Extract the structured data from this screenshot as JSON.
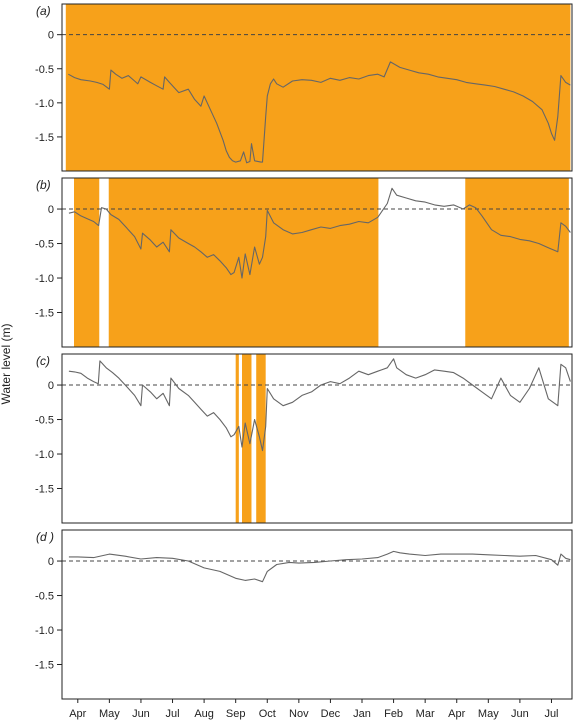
{
  "chart_data": {
    "type": "line",
    "ylabel": "Water level (m)",
    "x_tick_labels": [
      "Apr",
      "May",
      "Jun",
      "Jul",
      "Aug",
      "Sep",
      "Oct",
      "Nov",
      "Dec",
      "Jan",
      "Feb",
      "Mar",
      "Apr",
      "May",
      "Jun",
      "Jul"
    ],
    "x_ticks": [
      1,
      2,
      3,
      4,
      5,
      6,
      7,
      8,
      9,
      10,
      11,
      12,
      13,
      14,
      15,
      16
    ],
    "xlim": [
      0.5,
      16.65
    ],
    "ylim": [
      -2.0,
      0.45
    ],
    "y_ticks": [
      0,
      -0.5,
      -1.0,
      -1.5
    ],
    "y_tick_labels": [
      "0",
      "-0.5",
      "-1.0",
      "-1.5"
    ],
    "reference_line": 0,
    "shade_color": "#F7A11A",
    "line_color": "#666666",
    "panels": [
      {
        "label": "(a)",
        "shaded_periods": [
          [
            0.62,
            16.6
          ]
        ],
        "x": [
          0.7,
          0.9,
          1.1,
          1.4,
          1.6,
          1.8,
          2.0,
          2.05,
          2.2,
          2.4,
          2.6,
          2.8,
          2.9,
          3.0,
          3.3,
          3.5,
          3.7,
          3.75,
          3.9,
          4.2,
          4.5,
          4.7,
          4.9,
          5.0,
          5.2,
          5.4,
          5.6,
          5.7,
          5.8,
          5.9,
          6.0,
          6.15,
          6.25,
          6.35,
          6.45,
          6.5,
          6.6,
          6.8,
          6.85,
          6.95,
          7.0,
          7.1,
          7.2,
          7.3,
          7.5,
          7.8,
          8.1,
          8.4,
          8.7,
          9.0,
          9.3,
          9.6,
          9.9,
          10.2,
          10.5,
          10.7,
          10.9,
          11.2,
          11.5,
          11.8,
          12.1,
          12.4,
          12.7,
          13.0,
          13.3,
          13.6,
          13.9,
          14.2,
          14.5,
          14.8,
          15.1,
          15.4,
          15.7,
          15.9,
          16.0,
          16.1,
          16.2,
          16.3,
          16.45,
          16.6
        ],
        "y": [
          -0.58,
          -0.63,
          -0.66,
          -0.68,
          -0.7,
          -0.73,
          -0.8,
          -0.52,
          -0.58,
          -0.64,
          -0.6,
          -0.68,
          -0.72,
          -0.62,
          -0.7,
          -0.75,
          -0.8,
          -0.62,
          -0.7,
          -0.85,
          -0.8,
          -0.95,
          -1.05,
          -0.9,
          -1.1,
          -1.3,
          -1.55,
          -1.7,
          -1.8,
          -1.85,
          -1.87,
          -1.85,
          -1.72,
          -1.88,
          -1.86,
          -1.6,
          -1.85,
          -1.87,
          -1.87,
          -1.2,
          -0.9,
          -0.72,
          -0.65,
          -0.72,
          -0.77,
          -0.68,
          -0.66,
          -0.67,
          -0.7,
          -0.64,
          -0.67,
          -0.63,
          -0.65,
          -0.6,
          -0.58,
          -0.62,
          -0.4,
          -0.48,
          -0.52,
          -0.56,
          -0.58,
          -0.62,
          -0.64,
          -0.66,
          -0.7,
          -0.72,
          -0.74,
          -0.76,
          -0.8,
          -0.84,
          -0.9,
          -0.98,
          -1.1,
          -1.3,
          -1.45,
          -1.55,
          -1.2,
          -0.6,
          -0.7,
          -0.74
        ]
      },
      {
        "label": "(b)",
        "shaded_periods": [
          [
            0.88,
            1.68
          ],
          [
            1.98,
            10.52
          ],
          [
            13.27,
            16.55
          ]
        ],
        "x": [
          0.72,
          0.9,
          1.1,
          1.3,
          1.5,
          1.66,
          1.75,
          1.9,
          2.05,
          2.3,
          2.5,
          2.8,
          3.0,
          3.05,
          3.3,
          3.5,
          3.7,
          3.9,
          3.95,
          4.2,
          4.5,
          4.7,
          4.9,
          5.1,
          5.3,
          5.5,
          5.7,
          5.85,
          5.95,
          6.1,
          6.2,
          6.3,
          6.45,
          6.6,
          6.75,
          6.85,
          6.95,
          7.0,
          7.2,
          7.5,
          7.8,
          8.1,
          8.4,
          8.7,
          9.0,
          9.3,
          9.6,
          9.9,
          10.2,
          10.5,
          10.8,
          10.95,
          11.1,
          11.4,
          11.7,
          12.0,
          12.3,
          12.6,
          12.9,
          13.2,
          13.4,
          13.6,
          13.8,
          14.1,
          14.4,
          14.7,
          15.0,
          15.3,
          15.6,
          15.9,
          16.2,
          16.3,
          16.45,
          16.6
        ],
        "y": [
          -0.06,
          -0.04,
          -0.1,
          -0.14,
          -0.18,
          -0.24,
          0.02,
          0.0,
          -0.08,
          -0.15,
          -0.25,
          -0.4,
          -0.58,
          -0.35,
          -0.45,
          -0.55,
          -0.48,
          -0.62,
          -0.3,
          -0.42,
          -0.5,
          -0.55,
          -0.62,
          -0.7,
          -0.66,
          -0.75,
          -0.85,
          -0.95,
          -0.92,
          -0.7,
          -1.0,
          -0.65,
          -0.95,
          -0.55,
          -0.8,
          -0.7,
          -0.4,
          -0.02,
          -0.2,
          -0.3,
          -0.36,
          -0.34,
          -0.3,
          -0.26,
          -0.28,
          -0.24,
          -0.22,
          -0.18,
          -0.2,
          -0.12,
          0.08,
          0.3,
          0.2,
          0.16,
          0.12,
          0.1,
          0.06,
          0.04,
          0.06,
          0.0,
          0.06,
          0.02,
          -0.1,
          -0.3,
          -0.38,
          -0.4,
          -0.44,
          -0.46,
          -0.5,
          -0.56,
          -0.62,
          -0.2,
          -0.25,
          -0.34
        ]
      },
      {
        "label": "(c)",
        "shaded_periods": [
          [
            6.0,
            6.1
          ],
          [
            6.2,
            6.5
          ],
          [
            6.65,
            6.95
          ]
        ],
        "x": [
          0.72,
          0.9,
          1.1,
          1.3,
          1.5,
          1.65,
          1.7,
          1.9,
          2.1,
          2.3,
          2.5,
          2.8,
          3.0,
          3.05,
          3.3,
          3.5,
          3.7,
          3.9,
          3.95,
          4.2,
          4.5,
          4.7,
          4.9,
          5.1,
          5.3,
          5.5,
          5.7,
          5.85,
          5.95,
          6.1,
          6.2,
          6.3,
          6.45,
          6.6,
          6.75,
          6.85,
          6.95,
          7.0,
          7.2,
          7.5,
          7.8,
          8.1,
          8.4,
          8.7,
          9.0,
          9.3,
          9.6,
          9.9,
          10.2,
          10.5,
          10.8,
          11.0,
          11.1,
          11.4,
          11.7,
          12.0,
          12.3,
          12.6,
          12.9,
          13.2,
          13.5,
          13.8,
          14.1,
          14.4,
          14.7,
          15.0,
          15.3,
          15.6,
          15.9,
          16.2,
          16.3,
          16.45,
          16.6
        ],
        "y": [
          0.2,
          0.19,
          0.17,
          0.1,
          0.05,
          0.02,
          0.35,
          0.25,
          0.18,
          0.1,
          0.0,
          -0.15,
          -0.3,
          0.0,
          -0.1,
          -0.2,
          -0.12,
          -0.3,
          0.1,
          -0.05,
          -0.15,
          -0.25,
          -0.35,
          -0.45,
          -0.4,
          -0.5,
          -0.62,
          -0.75,
          -0.72,
          -0.6,
          -0.9,
          -0.55,
          -0.85,
          -0.5,
          -0.75,
          -0.95,
          -0.6,
          -0.05,
          -0.2,
          -0.3,
          -0.25,
          -0.15,
          -0.1,
          0.0,
          0.05,
          0.02,
          0.1,
          0.2,
          0.15,
          0.2,
          0.25,
          0.38,
          0.25,
          0.15,
          0.1,
          0.15,
          0.22,
          0.2,
          0.18,
          0.1,
          0.0,
          -0.1,
          -0.2,
          0.1,
          -0.15,
          -0.25,
          -0.05,
          0.25,
          -0.2,
          -0.3,
          0.3,
          0.25,
          0.05
        ]
      },
      {
        "label": "(d )",
        "shaded_periods": [],
        "x": [
          0.72,
          1.0,
          1.5,
          2.0,
          2.5,
          3.0,
          3.5,
          4.0,
          4.5,
          5.0,
          5.5,
          6.0,
          6.3,
          6.6,
          6.85,
          7.0,
          7.3,
          7.7,
          8.0,
          8.5,
          9.0,
          9.5,
          10.0,
          10.5,
          10.8,
          11.0,
          11.2,
          11.5,
          12.0,
          12.5,
          13.0,
          13.5,
          14.0,
          14.5,
          15.0,
          15.5,
          16.0,
          16.2,
          16.3,
          16.45,
          16.6
        ],
        "y": [
          0.06,
          0.06,
          0.05,
          0.1,
          0.07,
          0.03,
          0.05,
          0.04,
          0.0,
          -0.1,
          -0.15,
          -0.25,
          -0.28,
          -0.26,
          -0.3,
          -0.15,
          -0.05,
          -0.02,
          -0.03,
          -0.02,
          0.0,
          0.02,
          0.03,
          0.05,
          0.1,
          0.14,
          0.12,
          0.1,
          0.08,
          0.1,
          0.1,
          0.1,
          0.09,
          0.08,
          0.07,
          0.08,
          0.02,
          -0.06,
          0.1,
          0.04,
          0.02
        ]
      }
    ]
  }
}
